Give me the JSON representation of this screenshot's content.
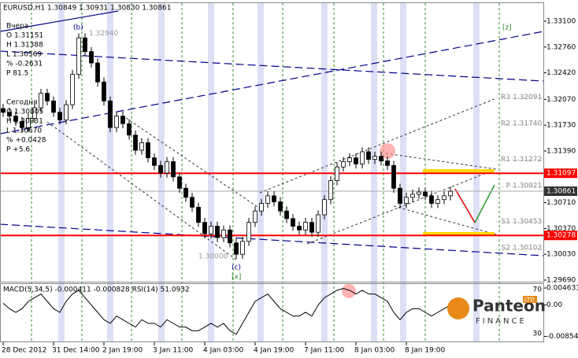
{
  "chart_data": {
    "type": "candlestick",
    "title": "EURUSD,H1 1.30849 1.30931 1.30830 1.30861",
    "categories": [
      "28 Dec 2012",
      null,
      null,
      null,
      null,
      null,
      null,
      null,
      "31 Dec 14:00",
      null,
      null,
      null,
      null,
      null,
      null,
      null,
      "2 Jan 19:00",
      null,
      null,
      null,
      null,
      null,
      null,
      null,
      "3 Jan 11:00",
      null,
      null,
      null,
      null,
      null,
      null,
      null,
      "4 Jan 03:00",
      null,
      null,
      null,
      null,
      null,
      null,
      null,
      "4 Jan 19:00",
      null,
      null,
      null,
      null,
      null,
      null,
      null,
      "7 Jan 11:00",
      null,
      null,
      null,
      null,
      null,
      null,
      null,
      "8 Jan 03:00",
      null,
      null,
      null,
      null,
      null,
      null,
      null,
      "8 Jan 19:00",
      null,
      null,
      null,
      null,
      null,
      null,
      null
    ],
    "ohlc": [
      [
        1.3195,
        1.3201,
        1.3184,
        1.319
      ],
      [
        1.319,
        1.3196,
        1.3179,
        1.3185
      ],
      [
        1.3185,
        1.3191,
        1.3172,
        1.3178
      ],
      [
        1.3178,
        1.3184,
        1.3164,
        1.317
      ],
      [
        1.317,
        1.3188,
        1.3164,
        1.3182
      ],
      [
        1.3182,
        1.3202,
        1.3176,
        1.3196
      ],
      [
        1.3196,
        1.3221,
        1.319,
        1.3215
      ],
      [
        1.3215,
        1.3221,
        1.3199,
        1.3205
      ],
      [
        1.3205,
        1.3211,
        1.3184,
        1.319
      ],
      [
        1.319,
        1.3196,
        1.3174,
        1.318
      ],
      [
        1.318,
        1.3206,
        1.3174,
        1.32
      ],
      [
        1.32,
        1.3246,
        1.3194,
        1.324
      ],
      [
        1.324,
        1.3294,
        1.3234,
        1.3288
      ],
      [
        1.3288,
        1.3294,
        1.3264,
        1.327
      ],
      [
        1.327,
        1.3276,
        1.3249,
        1.3255
      ],
      [
        1.3255,
        1.3261,
        1.3224,
        1.323
      ],
      [
        1.323,
        1.3236,
        1.3199,
        1.3205
      ],
      [
        1.3205,
        1.3211,
        1.3164,
        1.317
      ],
      [
        1.317,
        1.3191,
        1.3164,
        1.3185
      ],
      [
        1.3185,
        1.3191,
        1.3169,
        1.3175
      ],
      [
        1.3175,
        1.3181,
        1.3154,
        1.316
      ],
      [
        1.316,
        1.3166,
        1.3134,
        1.314
      ],
      [
        1.314,
        1.3156,
        1.3134,
        1.315
      ],
      [
        1.315,
        1.3156,
        1.3124,
        1.313
      ],
      [
        1.313,
        1.3136,
        1.3114,
        1.312
      ],
      [
        1.312,
        1.3126,
        1.3104,
        1.311
      ],
      [
        1.311,
        1.3131,
        1.3104,
        1.3125
      ],
      [
        1.3125,
        1.3131,
        1.3099,
        1.3105
      ],
      [
        1.3105,
        1.3111,
        1.3084,
        1.309
      ],
      [
        1.309,
        1.3096,
        1.3072,
        1.3078
      ],
      [
        1.3078,
        1.3084,
        1.3059,
        1.3065
      ],
      [
        1.3065,
        1.3071,
        1.3039,
        1.3045
      ],
      [
        1.3045,
        1.3051,
        1.3024,
        1.303
      ],
      [
        1.303,
        1.3046,
        1.3024,
        1.304
      ],
      [
        1.304,
        1.3046,
        1.3019,
        1.3025
      ],
      [
        1.3025,
        1.3041,
        1.3019,
        1.3035
      ],
      [
        1.3035,
        1.3041,
        1.3012,
        1.3018
      ],
      [
        1.3018,
        1.3024,
        1.2997,
        1.3003
      ],
      [
        1.3003,
        1.3026,
        1.2997,
        1.302
      ],
      [
        1.302,
        1.3051,
        1.3014,
        1.3045
      ],
      [
        1.3045,
        1.3066,
        1.3039,
        1.306
      ],
      [
        1.306,
        1.3076,
        1.3054,
        1.307
      ],
      [
        1.307,
        1.3086,
        1.3064,
        1.308
      ],
      [
        1.308,
        1.3086,
        1.3066,
        1.3072
      ],
      [
        1.3072,
        1.3078,
        1.3054,
        1.306
      ],
      [
        1.306,
        1.3066,
        1.3044,
        1.305
      ],
      [
        1.305,
        1.3056,
        1.3034,
        1.304
      ],
      [
        1.304,
        1.3046,
        1.3029,
        1.3035
      ],
      [
        1.3035,
        1.3051,
        1.3029,
        1.3045
      ],
      [
        1.3045,
        1.3051,
        1.3026,
        1.3032
      ],
      [
        1.3032,
        1.3061,
        1.3026,
        1.3055
      ],
      [
        1.3055,
        1.3081,
        1.3049,
        1.3075
      ],
      [
        1.3075,
        1.3106,
        1.3069,
        1.31
      ],
      [
        1.31,
        1.3124,
        1.3094,
        1.3118
      ],
      [
        1.3118,
        1.3131,
        1.3112,
        1.3125
      ],
      [
        1.3125,
        1.3136,
        1.3119,
        1.313
      ],
      [
        1.313,
        1.3136,
        1.3116,
        1.3122
      ],
      [
        1.3122,
        1.3144,
        1.3116,
        1.3138
      ],
      [
        1.3138,
        1.3144,
        1.3122,
        1.3128
      ],
      [
        1.3128,
        1.3138,
        1.3122,
        1.3132
      ],
      [
        1.3132,
        1.3138,
        1.312,
        1.3126
      ],
      [
        1.3126,
        1.3132,
        1.3114,
        1.312
      ],
      [
        1.312,
        1.3126,
        1.3084,
        1.309
      ],
      [
        1.309,
        1.3096,
        1.3064,
        1.307
      ],
      [
        1.307,
        1.3084,
        1.3064,
        1.3078
      ],
      [
        1.3078,
        1.3088,
        1.3072,
        1.3082
      ],
      [
        1.3082,
        1.3091,
        1.3076,
        1.3085
      ],
      [
        1.3085,
        1.3091,
        1.3074,
        1.308
      ],
      [
        1.308,
        1.3086,
        1.3064,
        1.307
      ],
      [
        1.307,
        1.3081,
        1.3064,
        1.3075
      ],
      [
        1.3075,
        1.3086,
        1.3069,
        1.308
      ],
      [
        1.308,
        1.3092,
        1.3074,
        1.3086
      ]
    ],
    "up_color": "#ffffff",
    "down_color": "#000000",
    "ylim": [
      1.29669,
      1.33338
    ],
    "yticks": [
      {
        "value": 1.331,
        "label": "1.33100"
      },
      {
        "value": 1.3276,
        "label": "1.32760"
      },
      {
        "value": 1.3242,
        "label": "1.32420"
      },
      {
        "value": 1.3207,
        "label": "1.32070"
      },
      {
        "value": 1.3173,
        "label": "1.31730"
      },
      {
        "value": 1.3139,
        "label": "1.31390"
      },
      {
        "value": 1.3071,
        "label": "1.30710"
      },
      {
        "value": 1.3037,
        "label": "1.30370"
      },
      {
        "value": 1.3003,
        "label": "1.30030"
      },
      {
        "value": 1.2969,
        "label": "1.29690"
      }
    ],
    "levels": [
      {
        "value": 1.31097,
        "color": "#ff0000"
      },
      {
        "value": 1.30278,
        "color": "#ff0000"
      },
      {
        "value": 1.30861,
        "color": "#aaaaaa"
      }
    ],
    "pivots": [
      {
        "name": "R3",
        "value": 1.32091,
        "label": "1.32091"
      },
      {
        "name": "R2",
        "value": 1.3174,
        "label": "1.31740"
      },
      {
        "name": "R1",
        "value": 1.31272,
        "label": "1.31272"
      },
      {
        "name": "P",
        "value": 1.30921,
        "label": "1.30921"
      },
      {
        "name": "S1",
        "value": 1.30453,
        "label": "1.30453"
      },
      {
        "name": "S2",
        "value": 1.30102,
        "label": "1.30102"
      }
    ],
    "wave_prices": [
      {
        "value": 1.3294,
        "label": "1.32940"
      },
      {
        "value": 1.3,
        "label": "1.30000"
      }
    ],
    "annotations": {
      "b": "(b)",
      "c": "(c)",
      "x": "[x]",
      "z": "[z]"
    },
    "info": {
      "yesterday": {
        "title": "Вчера",
        "lines": [
          "O 1.31151",
          "H 1.31388",
          "L 1.30569",
          "% -0.2631",
          "P 81.5"
        ]
      },
      "today": {
        "title": "Сегодня",
        "lines": [
          "O 1.30805",
          "H 1.30931",
          "L 1.30670",
          "% +0.0428",
          "P +5.6"
        ]
      }
    },
    "indicator": {
      "title": "MACD(5,34,5) -0.000411 -0.000828 RSI(14) 51.0932",
      "color": "#000000",
      "values": [
        0.0005,
        -0.001,
        -0.002,
        -0.001,
        0.001,
        0.002,
        0.003,
        0.001,
        -0.001,
        -0.002,
        0.001,
        0.003,
        0.004,
        0.002,
        0,
        -0.002,
        -0.004,
        -0.005,
        -0.003,
        -0.004,
        -0.005,
        -0.006,
        -0.004,
        -0.005,
        -0.005,
        -0.006,
        -0.004,
        -0.005,
        -0.006,
        -0.006,
        -0.007,
        -0.007,
        -0.006,
        -0.005,
        -0.006,
        -0.005,
        -0.007,
        -0.008,
        -0.005,
        -0.002,
        0.001,
        0.002,
        0.003,
        0.001,
        -0.001,
        -0.002,
        -0.003,
        -0.003,
        -0.002,
        -0.003,
        0,
        0.002,
        0.003,
        0.004,
        0.0045,
        0.004,
        0.003,
        0.004,
        0.003,
        0.003,
        0.002,
        0.001,
        -0.002,
        -0.004,
        -0.002,
        -0.001,
        -0.001,
        -0.002,
        -0.003,
        -0.002,
        -0.001,
        0
      ],
      "ylim": [
        -0.0095,
        0.0055
      ],
      "yticks": [
        0.004631,
        {
          "value": 0,
          "label": "0.00"
        },
        -0.00854
      ],
      "rsi_levels": [
        70,
        30
      ]
    },
    "logo": {
      "name": "Panteon",
      "sub": "FINANCE",
      "badge": "LTD"
    }
  }
}
